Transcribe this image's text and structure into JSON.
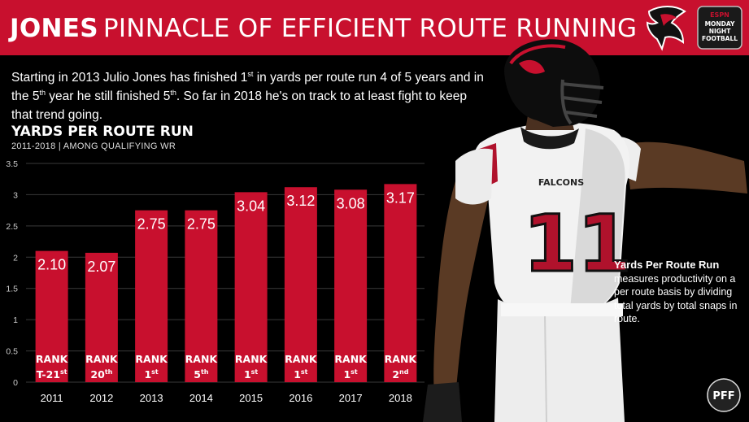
{
  "header": {
    "title_bold": "JONES",
    "title_light": "PINNACLE OF EFFICIENT ROUTE RUNNING",
    "mnf_logo_line1": "MONDAY",
    "mnf_logo_line2": "NIGHT",
    "mnf_logo_line3": "FOOTBALL",
    "mnf_logo_brand": "ESPN"
  },
  "intro": {
    "p1": "Starting in 2013 Julio Jones has finished 1",
    "sup1": "st",
    "p2": " in yards per route run 4 of 5 years and in the 5",
    "sup2": "th",
    "p3": " year he still finished 5",
    "sup3": "th",
    "p4": ". So far in 2018 he's on track to at least fight to keep that trend going."
  },
  "chart_data": {
    "type": "bar",
    "title": "YARDS PER ROUTE RUN",
    "subtitle": "2011-2018 | AMONG QUALIFYING WR",
    "categories": [
      "2011",
      "2012",
      "2013",
      "2014",
      "2015",
      "2016",
      "2017",
      "2018"
    ],
    "values": [
      2.1,
      2.07,
      2.75,
      2.75,
      3.04,
      3.12,
      3.08,
      3.17
    ],
    "value_labels": [
      "2.10",
      "2.07",
      "2.75",
      "2.75",
      "3.04",
      "3.12",
      "3.08",
      "3.17"
    ],
    "rank_word": "RANK",
    "ranks": [
      {
        "main": "T-21",
        "sup": "st"
      },
      {
        "main": "20",
        "sup": "th"
      },
      {
        "main": "1",
        "sup": "st"
      },
      {
        "main": "5",
        "sup": "th"
      },
      {
        "main": "1",
        "sup": "st"
      },
      {
        "main": "1",
        "sup": "st"
      },
      {
        "main": "1",
        "sup": "st"
      },
      {
        "main": "2",
        "sup": "nd"
      }
    ],
    "yticks": [
      "0",
      "0.5",
      "1",
      "1.5",
      "2",
      "2.5",
      "3",
      "3.5"
    ],
    "ylim": [
      0,
      3.5
    ],
    "grid": true,
    "bar_color": "#c8102e",
    "grid_color": "#3a3a3a"
  },
  "side_note": {
    "heading": "Yards Per Route Run",
    "body": "measures productivity on a per route basis by dividing total yards by total snaps in route."
  },
  "jersey": {
    "number": "11",
    "team_text": "FALCONS"
  },
  "pff_logo": "PFF",
  "colors": {
    "brand_red": "#c8102e",
    "background": "#000000"
  },
  "icons": {
    "falcons_logo": "falcons-logo-icon",
    "mnf_logo": "monday-night-football-logo-icon",
    "pff_logo": "pff-logo-icon"
  }
}
